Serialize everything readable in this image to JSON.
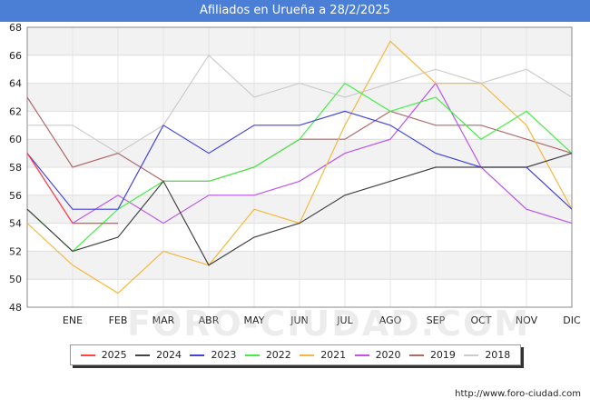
{
  "header": {
    "title": "Afiliados en Urueña a 28/2/2025"
  },
  "watermark": "FORO-CIUDAD.COM",
  "footer": {
    "url": "http://www.foro-ciudad.com"
  },
  "chart_data": {
    "type": "line",
    "title": "Afiliados en Urueña a 28/2/2025",
    "xlabel": "",
    "ylabel": "",
    "categories": [
      "",
      "ENE",
      "FEB",
      "MAR",
      "ABR",
      "MAY",
      "JUN",
      "JUL",
      "AGO",
      "SEP",
      "OCT",
      "NOV",
      "DIC"
    ],
    "y_ticks": [
      48,
      50,
      52,
      54,
      56,
      58,
      60,
      62,
      64,
      66,
      68
    ],
    "ylim": [
      48,
      68
    ],
    "grid": true,
    "legend_position": "bottom",
    "series": [
      {
        "name": "2025",
        "color": "#ff4444",
        "values": [
          59,
          54,
          54,
          null,
          null,
          null,
          null,
          null,
          null,
          null,
          null,
          null,
          null
        ]
      },
      {
        "name": "2024",
        "color": "#444444",
        "values": [
          55,
          52,
          53,
          57,
          51,
          53,
          54,
          56,
          57,
          58,
          58,
          58,
          59
        ]
      },
      {
        "name": "2023",
        "color": "#4444dd",
        "values": [
          59,
          55,
          55,
          61,
          59,
          61,
          61,
          62,
          61,
          59,
          58,
          58,
          55
        ]
      },
      {
        "name": "2022",
        "color": "#44ee44",
        "values": [
          55,
          52,
          55,
          57,
          57,
          58,
          60,
          64,
          62,
          63,
          60,
          62,
          59
        ]
      },
      {
        "name": "2021",
        "color": "#f5b942",
        "values": [
          54,
          51,
          49,
          52,
          51,
          55,
          54,
          61,
          67,
          64,
          64,
          61,
          55
        ]
      },
      {
        "name": "2020",
        "color": "#bb55ee",
        "values": [
          59,
          54,
          56,
          54,
          56,
          56,
          57,
          59,
          60,
          64,
          58,
          55,
          54
        ]
      },
      {
        "name": "2019",
        "color": "#b06a6a",
        "values": [
          63,
          58,
          59,
          57,
          57,
          58,
          60,
          60,
          62,
          61,
          61,
          60,
          59
        ]
      },
      {
        "name": "2018",
        "color": "#cccccc",
        "values": [
          61,
          61,
          59,
          61,
          66,
          63,
          64,
          63,
          64,
          65,
          64,
          65,
          63
        ]
      }
    ]
  }
}
